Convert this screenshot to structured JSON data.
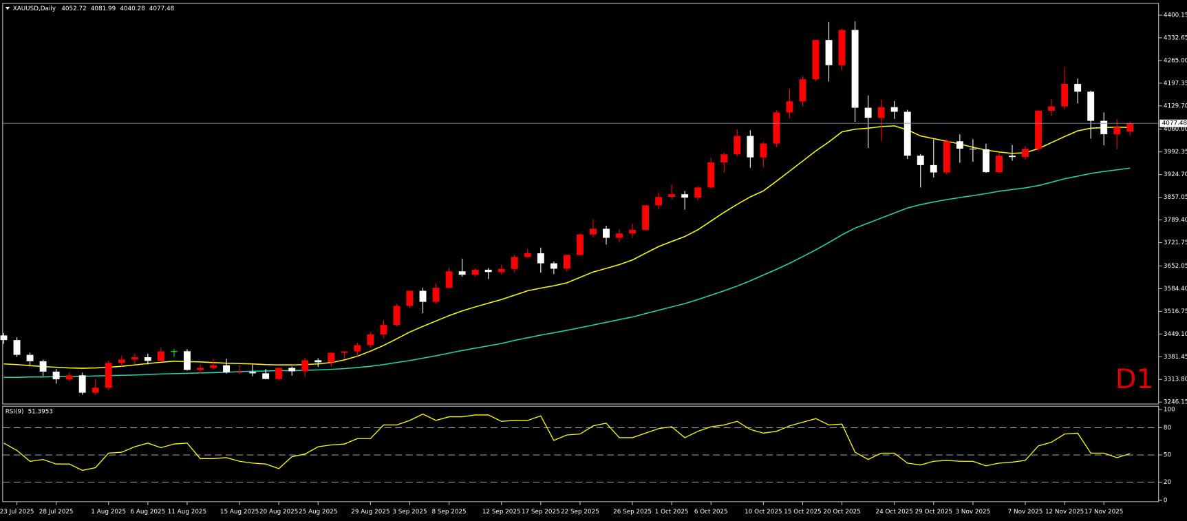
{
  "chart_data": [
    {
      "type": "candlestick",
      "title": "XAUUSD,Daily",
      "label": "D1",
      "categories": [
        null,
        "23 Jul 2025",
        null,
        null,
        "28 Jul 2025",
        null,
        null,
        null,
        "1 Aug 2025",
        null,
        null,
        "6 Aug 2025",
        null,
        null,
        "11 Aug 2025",
        null,
        null,
        null,
        "15 Aug 2025",
        null,
        null,
        "20 Aug 2025",
        null,
        null,
        "25 Aug 2025",
        null,
        null,
        null,
        "29 Aug 2025",
        null,
        null,
        "3 Sep 2025",
        null,
        null,
        "8 Sep 2025",
        null,
        null,
        null,
        "12 Sep 2025",
        null,
        null,
        "17 Sep 2025",
        null,
        null,
        "22 Sep 2025",
        null,
        null,
        null,
        "26 Sep 2025",
        null,
        null,
        "1 Oct 2025",
        null,
        null,
        "6 Oct 2025",
        null,
        null,
        null,
        "10 Oct 2025",
        null,
        null,
        "15 Oct 2025",
        null,
        null,
        "20 Oct 2025",
        null,
        null,
        null,
        "24 Oct 2025",
        null,
        null,
        "29 Oct 2025",
        null,
        null,
        "3 Nov 2025",
        null,
        null,
        null,
        "7 Nov 2025",
        null,
        null,
        "12 Nov 2025",
        null,
        null,
        "17 Nov 2025",
        null,
        null
      ],
      "open": [
        3445,
        3431,
        3387,
        3368,
        3337,
        3314,
        3326,
        3274,
        3289,
        3363,
        3373,
        3380,
        3369,
        3398,
        3398,
        3342,
        3348,
        3356,
        3335,
        3336,
        3332,
        3315,
        3348,
        3338,
        3371,
        3365,
        3393,
        3397,
        3416,
        3448,
        3476,
        3533,
        3578,
        3545,
        3587,
        3636,
        3626,
        3641,
        3634,
        3643,
        3679,
        3690,
        3660,
        3644,
        3685,
        3746,
        3763,
        3736,
        3749,
        3760,
        3833,
        3858,
        3866,
        3856,
        3886,
        3961,
        3985,
        4040,
        3976,
        4017,
        4110,
        4143,
        4209,
        4326,
        4251,
        4356,
        4124,
        4094,
        4126,
        4112,
        3981,
        3953,
        3931,
        4024,
        4002,
        4000,
        3932,
        3981,
        3977,
        4001,
        4115,
        4128,
        4195,
        4172,
        4085,
        4045,
        4052.72
      ],
      "high": [
        3452,
        3439,
        3394,
        3373,
        3345,
        3334,
        3334,
        3315,
        3370,
        3385,
        3390,
        3391,
        3409,
        3404,
        3404,
        3359,
        3375,
        3375,
        3358,
        3358,
        3345,
        3350,
        3352,
        3378,
        3377,
        3394,
        3399,
        3423,
        3454,
        3490,
        3539,
        3579,
        3587,
        3600,
        3647,
        3674,
        3645,
        3646,
        3656,
        3685,
        3703,
        3707,
        3665,
        3686,
        3750,
        3791,
        3772,
        3762,
        3778,
        3834,
        3872,
        3895,
        3876,
        3890,
        3975,
        3990,
        4060,
        4057,
        4022,
        4116,
        4180,
        4218,
        4327,
        4380,
        4359,
        4381,
        4161,
        4148,
        4144,
        4118,
        3986,
        4030,
        4030,
        4045,
        4030,
        4017,
        3990,
        4013,
        4010,
        4117,
        4149,
        4245,
        4211,
        4175,
        4110,
        4090,
        4081.99
      ],
      "low": [
        3420,
        3381,
        3352,
        3324,
        3301,
        3309,
        3268,
        3268,
        3281,
        3352,
        3358,
        3358,
        3366,
        3381,
        3340,
        3332,
        3343,
        3331,
        3330,
        3323,
        3314,
        3311,
        3325,
        3322,
        3351,
        3352,
        3375,
        3383,
        3408,
        3437,
        3472,
        3527,
        3511,
        3540,
        3585,
        3620,
        3620,
        3613,
        3627,
        3633,
        3676,
        3632,
        3628,
        3635,
        3682,
        3737,
        3716,
        3722,
        3736,
        3757,
        3820,
        3851,
        3820,
        3848,
        3884,
        3931,
        3980,
        3945,
        3946,
        4006,
        4093,
        4128,
        4203,
        4202,
        4236,
        4082,
        4004,
        4024,
        4091,
        3971,
        3886,
        3916,
        3925,
        3960,
        3963,
        3930,
        3928,
        3966,
        3970,
        3994,
        4100,
        4120,
        4137,
        4032,
        4012,
        4000,
        4040.28
      ],
      "close": [
        3431,
        3387,
        3368,
        3337,
        3314,
        3326,
        3274,
        3289,
        3363,
        3373,
        3380,
        3369,
        3397,
        3398,
        3342,
        3348,
        3356,
        3335,
        3336,
        3332,
        3315,
        3348,
        3338,
        3371,
        3365,
        3393,
        3397,
        3416,
        3448,
        3476,
        3533,
        3578,
        3545,
        3587,
        3636,
        3626,
        3641,
        3634,
        3643,
        3679,
        3690,
        3660,
        3644,
        3685,
        3746,
        3763,
        3736,
        3749,
        3760,
        3833,
        3858,
        3866,
        3856,
        3886,
        3961,
        3985,
        4040,
        3976,
        4017,
        4110,
        4143,
        4209,
        4326,
        4251,
        4356,
        4124,
        4094,
        4126,
        4112,
        3981,
        3953,
        3931,
        4024,
        4002,
        4000,
        3932,
        3981,
        3977,
        4001,
        4115,
        4128,
        4195,
        4172,
        4085,
        4045,
        4066,
        4077.48
      ],
      "lines": [
        {
          "color": "#ffff00",
          "values": [
            3360,
            3358,
            3355,
            3352,
            3350,
            3348,
            3347,
            3348,
            3350,
            3353,
            3357,
            3361,
            3365,
            3368,
            3367,
            3366,
            3364,
            3362,
            3361,
            3360,
            3358,
            3357,
            3357,
            3358,
            3360,
            3364,
            3372,
            3383,
            3398,
            3415,
            3435,
            3455,
            3472,
            3488,
            3504,
            3518,
            3530,
            3541,
            3552,
            3565,
            3578,
            3586,
            3593,
            3602,
            3618,
            3634,
            3645,
            3656,
            3670,
            3690,
            3710,
            3725,
            3740,
            3760,
            3786,
            3812,
            3836,
            3858,
            3876,
            3905,
            3935,
            3965,
            3995,
            4022,
            4052,
            4060,
            4063,
            4068,
            4070,
            4058,
            4040,
            4032,
            4024,
            4016,
            4006,
            3998,
            3992,
            3988,
            3990,
            4002,
            4020,
            4038,
            4055,
            4063,
            4065,
            4066,
            4065
          ]
        },
        {
          "color": "#20d8b0",
          "values": [
            3320,
            3320,
            3321,
            3321,
            3322,
            3322,
            3323,
            3324,
            3325,
            3326,
            3327,
            3328,
            3330,
            3331,
            3332,
            3333,
            3334,
            3335,
            3337,
            3338,
            3339,
            3340,
            3340,
            3341,
            3342,
            3344,
            3346,
            3349,
            3353,
            3358,
            3364,
            3370,
            3377,
            3384,
            3392,
            3400,
            3407,
            3414,
            3421,
            3430,
            3438,
            3446,
            3453,
            3460,
            3468,
            3476,
            3484,
            3492,
            3500,
            3510,
            3520,
            3530,
            3540,
            3552,
            3565,
            3578,
            3592,
            3608,
            3625,
            3642,
            3660,
            3680,
            3700,
            3722,
            3745,
            3765,
            3780,
            3795,
            3810,
            3825,
            3835,
            3843,
            3850,
            3856,
            3862,
            3868,
            3875,
            3880,
            3885,
            3892,
            3902,
            3912,
            3920,
            3928,
            3934,
            3939,
            3944
          ]
        }
      ],
      "bull_color": "#ff0000",
      "bear_color": "#ffffff",
      "doji_color": "#00ff00",
      "label_color": "#e00000",
      "ylim": [
        3241.6,
        4427.2
      ],
      "yticks": [
        4400.15,
        4332.65,
        {
          "value": 4265,
          "label": "4265.00"
        },
        4197.35,
        {
          "value": 4129.7,
          "label": "4129.70"
        },
        {
          "value": 4060,
          "label": "4060.00"
        },
        3992.35,
        {
          "value": 3924.7,
          "label": "3924.70"
        },
        3857.05,
        {
          "value": 3789.4,
          "label": "3789.40"
        },
        3721.75,
        3652.05,
        {
          "value": 3584.4,
          "label": "3584.40"
        },
        3516.75,
        {
          "value": 3449.1,
          "label": "3449.10"
        },
        3381.45,
        {
          "value": 3313.8,
          "label": "3313.80"
        },
        3246.15
      ]
    },
    {
      "type": "line",
      "title": "RSI(9)",
      "color": "#ffff00",
      "values": [
        63,
        55,
        43,
        45,
        40,
        40,
        33,
        36,
        52,
        53,
        59,
        63,
        58,
        62,
        63,
        46,
        46,
        47,
        43,
        41,
        40,
        35,
        48,
        51,
        59,
        61,
        62,
        68,
        68,
        83,
        83,
        88,
        95,
        88,
        92,
        92,
        94,
        94,
        87,
        88,
        88,
        93,
        66,
        72,
        73,
        82,
        85,
        69,
        69,
        74,
        79,
        81,
        69,
        76,
        81,
        83,
        87,
        78,
        74,
        76,
        82,
        86,
        90,
        83,
        84,
        53,
        45,
        52,
        52,
        41,
        39,
        43,
        44,
        43,
        43,
        38,
        41,
        42,
        44,
        60,
        64,
        73,
        74,
        52,
        52,
        47,
        51.3953
      ],
      "ylim": [
        -1,
        104
      ],
      "yticks": [
        100,
        80,
        50,
        20,
        0
      ],
      "levels": [
        80,
        50,
        20
      ]
    }
  ]
}
